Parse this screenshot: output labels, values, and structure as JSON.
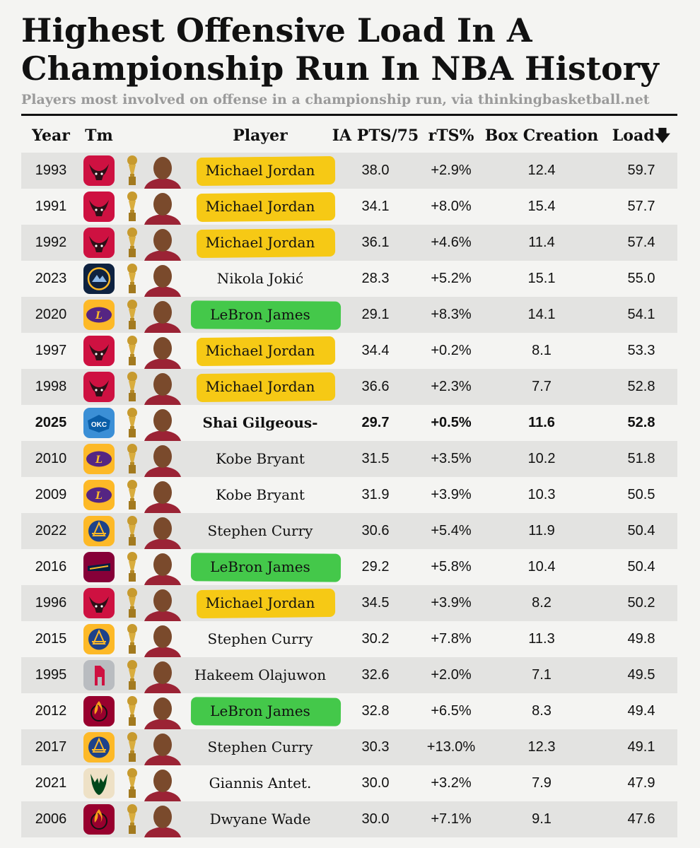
{
  "title": "Highest Offensive Load In A Championship Run In NBA History",
  "subtitle": "Players most involved on offense in a championship run, via thinkingbasketball.net",
  "headers": {
    "year": "Year",
    "team": "Tm",
    "player": "Player",
    "ia": "IA PTS/75",
    "rts": "rTS%",
    "box": "Box Creation",
    "load": "Load",
    "sort_arrow": "🡇"
  },
  "colors": {
    "highlight_jordan": "#f6c915",
    "highlight_lebron": "#44c84a",
    "row_alt": "#e3e3e1",
    "bulls": "#ce1141",
    "nuggets": "#1d428a",
    "lakers": "#fdb927",
    "thunder": "#3b8fd6",
    "warriors": "#fdb927",
    "cavaliers": "#860038",
    "rockets": "#b9bcc0",
    "heat": "#98002e",
    "bucks": "#eee1c6"
  },
  "chart_data": {
    "type": "table",
    "sorted_by": "Load",
    "columns": [
      "Year",
      "Tm",
      "Player",
      "IA PTS/75",
      "rTS%",
      "Box Creation",
      "Load"
    ],
    "rows": [
      {
        "year": "1993",
        "team": "bulls",
        "player": "Michael Jordan",
        "ia": "38.0",
        "rts": "+2.9%",
        "box": "12.4",
        "load": "59.7",
        "highlight": "yellow",
        "bold": false
      },
      {
        "year": "1991",
        "team": "bulls",
        "player": "Michael Jordan",
        "ia": "34.1",
        "rts": "+8.0%",
        "box": "15.4",
        "load": "57.7",
        "highlight": "yellow",
        "bold": false
      },
      {
        "year": "1992",
        "team": "bulls",
        "player": "Michael Jordan",
        "ia": "36.1",
        "rts": "+4.6%",
        "box": "11.4",
        "load": "57.4",
        "highlight": "yellow",
        "bold": false
      },
      {
        "year": "2023",
        "team": "nuggets",
        "player": "Nikola Jokić",
        "ia": "28.3",
        "rts": "+5.2%",
        "box": "15.1",
        "load": "55.0",
        "highlight": "none",
        "bold": false
      },
      {
        "year": "2020",
        "team": "lakers",
        "player": "LeBron James",
        "ia": "29.1",
        "rts": "+8.3%",
        "box": "14.1",
        "load": "54.1",
        "highlight": "green",
        "bold": false
      },
      {
        "year": "1997",
        "team": "bulls",
        "player": "Michael Jordan",
        "ia": "34.4",
        "rts": "+0.2%",
        "box": "8.1",
        "load": "53.3",
        "highlight": "yellow",
        "bold": false
      },
      {
        "year": "1998",
        "team": "bulls",
        "player": "Michael Jordan",
        "ia": "36.6",
        "rts": "+2.3%",
        "box": "7.7",
        "load": "52.8",
        "highlight": "yellow",
        "bold": false
      },
      {
        "year": "2025",
        "team": "thunder",
        "player": "Shai Gilgeous-Alex.",
        "ia": "29.7",
        "rts": "+0.5%",
        "box": "11.6",
        "load": "52.8",
        "highlight": "none",
        "bold": true
      },
      {
        "year": "2010",
        "team": "lakers",
        "player": "Kobe Bryant",
        "ia": "31.5",
        "rts": "+3.5%",
        "box": "10.2",
        "load": "51.8",
        "highlight": "none",
        "bold": false
      },
      {
        "year": "2009",
        "team": "lakers",
        "player": "Kobe Bryant",
        "ia": "31.9",
        "rts": "+3.9%",
        "box": "10.3",
        "load": "50.5",
        "highlight": "none",
        "bold": false
      },
      {
        "year": "2022",
        "team": "warriors",
        "player": "Stephen Curry",
        "ia": "30.6",
        "rts": "+5.4%",
        "box": "11.9",
        "load": "50.4",
        "highlight": "none",
        "bold": false
      },
      {
        "year": "2016",
        "team": "cavaliers",
        "player": "LeBron James",
        "ia": "29.2",
        "rts": "+5.8%",
        "box": "10.4",
        "load": "50.4",
        "highlight": "green",
        "bold": false
      },
      {
        "year": "1996",
        "team": "bulls",
        "player": "Michael Jordan",
        "ia": "34.5",
        "rts": "+3.9%",
        "box": "8.2",
        "load": "50.2",
        "highlight": "yellow",
        "bold": false
      },
      {
        "year": "2015",
        "team": "warriors",
        "player": "Stephen Curry",
        "ia": "30.2",
        "rts": "+7.8%",
        "box": "11.3",
        "load": "49.8",
        "highlight": "none",
        "bold": false
      },
      {
        "year": "1995",
        "team": "rockets",
        "player": "Hakeem Olajuwon",
        "ia": "32.6",
        "rts": "+2.0%",
        "box": "7.1",
        "load": "49.5",
        "highlight": "none",
        "bold": false
      },
      {
        "year": "2012",
        "team": "heat",
        "player": "LeBron James",
        "ia": "32.8",
        "rts": "+6.5%",
        "box": "8.3",
        "load": "49.4",
        "highlight": "green",
        "bold": false
      },
      {
        "year": "2017",
        "team": "warriors",
        "player": "Stephen Curry",
        "ia": "30.3",
        "rts": "+13.0%",
        "box": "12.3",
        "load": "49.1",
        "highlight": "none",
        "bold": false
      },
      {
        "year": "2021",
        "team": "bucks",
        "player": "Giannis Antet.",
        "ia": "30.0",
        "rts": "+3.2%",
        "box": "7.9",
        "load": "47.9",
        "highlight": "none",
        "bold": false
      },
      {
        "year": "2006",
        "team": "heat",
        "player": "Dwyane Wade",
        "ia": "30.0",
        "rts": "+7.1%",
        "box": "9.1",
        "load": "47.6",
        "highlight": "none",
        "bold": false
      }
    ]
  }
}
